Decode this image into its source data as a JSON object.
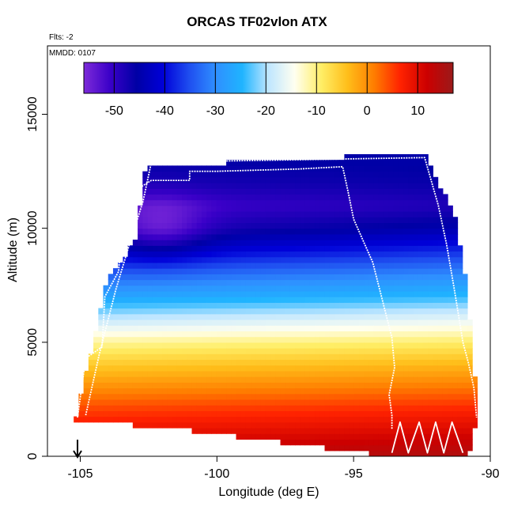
{
  "chart_data": {
    "type": "heatmap",
    "title": "ORCAS TF02vlon ATX",
    "subtitle_flights": "Flts: -2",
    "subtitle_date": "MMDD: 0107",
    "xlabel": "Longitude (deg E)",
    "ylabel": "Altitude (m)",
    "xlim": [
      -106.2,
      -90
    ],
    "ylim": [
      0,
      18000
    ],
    "x_ticks": [
      -105,
      -100,
      -95,
      -90
    ],
    "x_tick_labels": [
      "-105",
      "-100",
      "-95",
      "-90"
    ],
    "y_ticks": [
      0,
      5000,
      10000,
      15000
    ],
    "y_tick_labels": [
      "0",
      "5000",
      "10000",
      "15000"
    ],
    "colorbar": {
      "range": [
        -56,
        17
      ],
      "ticks": [
        -50,
        -40,
        -30,
        -20,
        -10,
        0,
        10
      ],
      "tick_labels": [
        "-50",
        "-40",
        "-30",
        "-20",
        "-10",
        "0",
        "10"
      ],
      "colors": [
        "#7d2bd9",
        "#3a00c8",
        "#0000a5",
        "#0000d8",
        "#1f4ff0",
        "#2f8fff",
        "#1fb4ff",
        "#bfe6ff",
        "#fffff0",
        "#ffee66",
        "#ffbe1a",
        "#ff7d00",
        "#ff2200",
        "#cc0000",
        "#9b1a1a"
      ]
    },
    "domain_outline": [
      [
        -105.2,
        1600
      ],
      [
        -104.6,
        4600
      ],
      [
        -104.0,
        7800
      ],
      [
        -103.0,
        9400
      ],
      [
        -102.6,
        12700
      ],
      [
        -92.4,
        13300
      ],
      [
        -91.3,
        10500
      ],
      [
        -90.9,
        7800
      ],
      [
        -90.6,
        4300
      ],
      [
        -90.5,
        1500
      ],
      [
        -90.8,
        100
      ],
      [
        -93.6,
        0
      ],
      [
        -101.5,
        1200
      ],
      [
        -103.3,
        1400
      ],
      [
        -105.2,
        1500
      ]
    ],
    "temperature_profile": {
      "altitude": [
        0,
        2000,
        4000,
        5000,
        6000,
        7000,
        8000,
        9000,
        10000,
        11000,
        12000,
        13000
      ],
      "temp_west": [
        13,
        5,
        -5,
        -11,
        -19,
        -27,
        -34,
        -42,
        -49,
        -52,
        -48,
        -46
      ],
      "temp_east": [
        15,
        7,
        -3,
        -9,
        -16,
        -24,
        -30,
        -37,
        -44,
        -48,
        -46,
        -45
      ],
      "cold_core_center": [
        -102.0,
        10000
      ]
    },
    "flight_track_1": {
      "lon": [
        -105.1,
        -104.8,
        -104.2,
        -104.1,
        -103.6,
        -103.5,
        -103.1,
        -102.8,
        -102.4,
        -101.0,
        -101.0,
        -100.0,
        -97.0,
        -95.4,
        -95.2,
        -95.0,
        -94.3,
        -94.0,
        -93.6,
        -93.5,
        -93.7,
        -93.6,
        -93.6
      ],
      "alt": [
        1700,
        4300,
        4800,
        7000,
        8100,
        9400,
        9800,
        11800,
        12100,
        12100,
        12500,
        12500,
        12600,
        12700,
        11600,
        10400,
        8500,
        7100,
        5200,
        3900,
        2700,
        1800,
        1200
      ]
    },
    "flight_track_2": {
      "lon": [
        -104.8,
        -104.3,
        -103.7,
        -103.2,
        -102.7,
        -102.4,
        -92.4,
        -91.9,
        -91.6,
        -91.3,
        -91.0,
        -90.8,
        -90.6,
        -90.5
      ],
      "alt": [
        1800,
        4500,
        7300,
        9300,
        11200,
        12900,
        13100,
        11000,
        9300,
        7200,
        5000,
        4100,
        3000,
        1700
      ]
    },
    "low_level_legs": {
      "lon": [
        -93.6,
        -93.3,
        -93.0,
        -92.6,
        -92.3,
        -92.0,
        -91.7,
        -91.4,
        -91.0
      ],
      "alt": [
        150,
        1500,
        150,
        1500,
        150,
        1500,
        150,
        1500,
        150
      ]
    },
    "arrow_marker": {
      "lon": -105.1,
      "label": ""
    }
  }
}
